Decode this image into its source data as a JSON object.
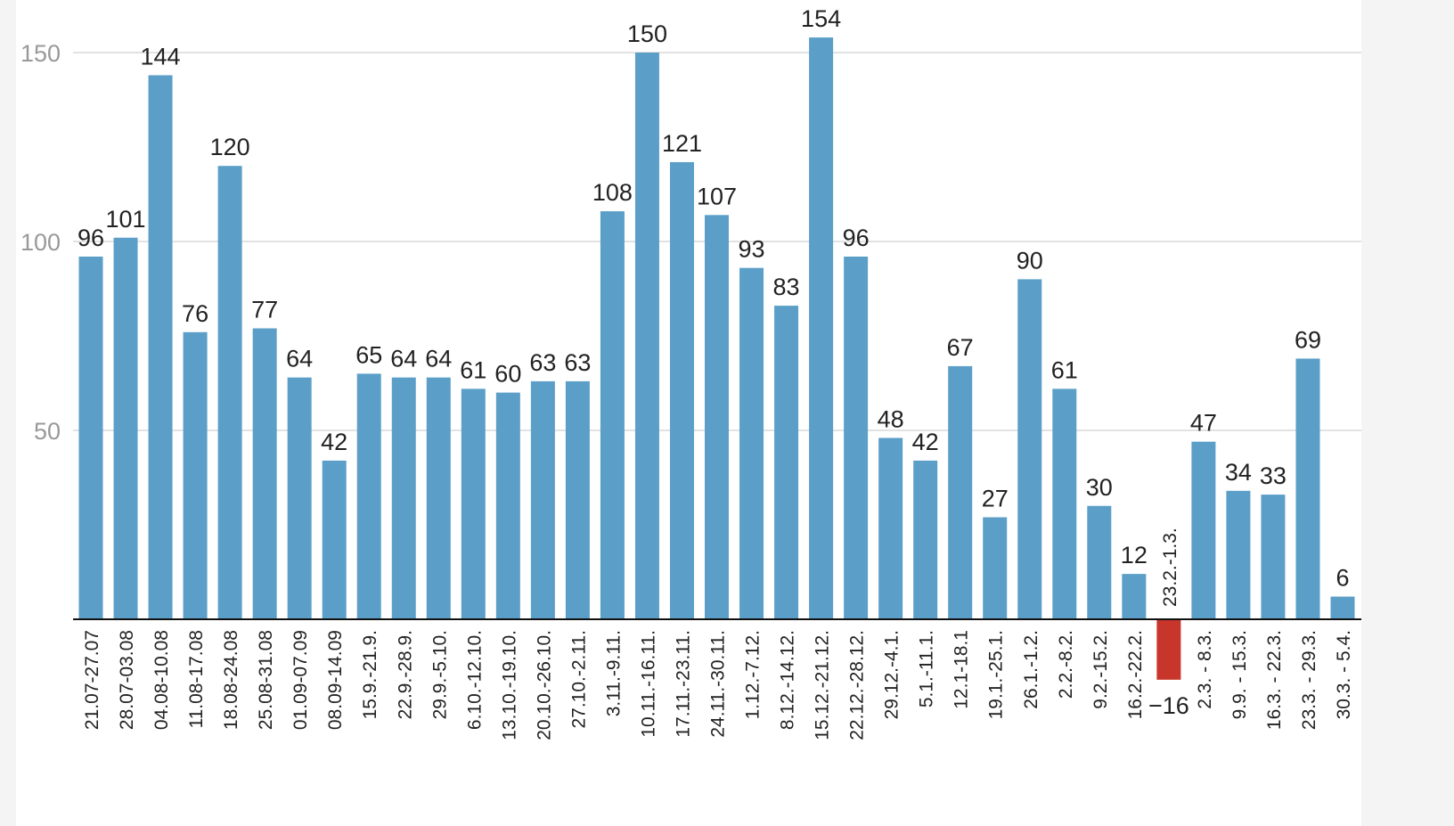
{
  "chart_data": {
    "type": "bar",
    "title": "",
    "xlabel": "",
    "ylabel": "",
    "ylim": [
      0,
      150
    ],
    "yticks": [
      50,
      100,
      150
    ],
    "grid": true,
    "colors": {
      "positive": "#5b9fc8",
      "negative": "#c8352b",
      "grid": "#e2e2e2",
      "tick": "#999999"
    },
    "categories": [
      "21.07-27.07",
      "28.07-03.08",
      "04.08-10.08",
      "11.08-17.08",
      "18.08-24.08",
      "25.08-31.08",
      "01.09-07.09",
      "08.09-14.09",
      "15.9.-21.9.",
      "22.9.-28.9.",
      "29.9.-5.10.",
      "6.10.-12.10.",
      "13.10.-19.10.",
      "20.10.-26.10.",
      "27.10.-2.11.",
      "3.11.-9.11.",
      "10.11.-16.11.",
      "17.11.-23.11.",
      "24.11.-30.11.",
      "1.12.-7.12.",
      "8.12.-14.12.",
      "15.12.-21.12.",
      "22.12.-28.12.",
      "29.12.-4.1.",
      "5.1.-11.1.",
      "12.1-18.1",
      "19.1.-25.1.",
      "26.1.-1.2.",
      "2.2.-8.2.",
      "9.2.-15.2.",
      "16.2.-22.2.",
      "23.2.-1.3.",
      "2.3. - 8.3.",
      "9.9. - 15.3.",
      "16.3. - 22.3.",
      "23.3. - 29.3.",
      "30.3. - 5.4."
    ],
    "values": [
      96,
      101,
      144,
      76,
      120,
      77,
      64,
      42,
      65,
      64,
      64,
      61,
      60,
      63,
      63,
      108,
      150,
      121,
      107,
      93,
      83,
      154,
      96,
      48,
      42,
      67,
      27,
      90,
      61,
      30,
      12,
      -16,
      47,
      34,
      33,
      69,
      6
    ]
  }
}
